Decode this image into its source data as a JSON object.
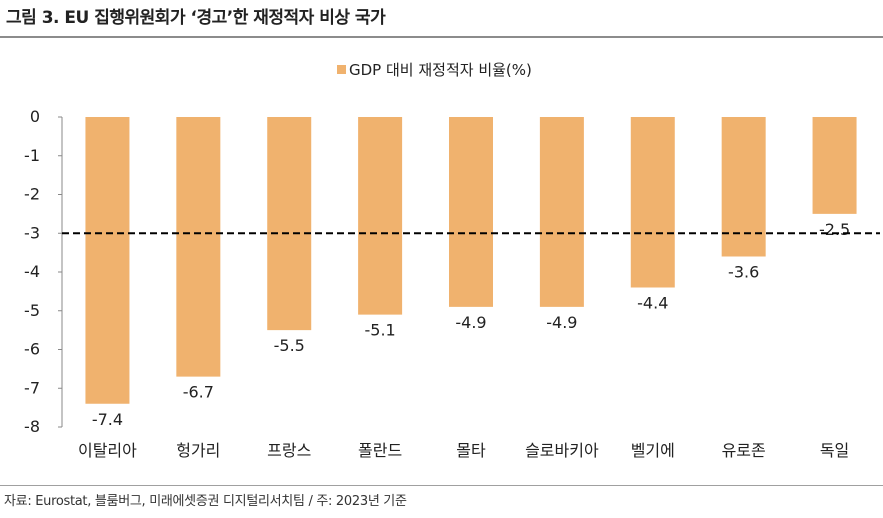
{
  "header": {
    "title": "그림 3. EU 집행위원회가 ‘경고’한 재정적자 비상 국가"
  },
  "footer": {
    "source": "자료: Eurostat, 블룸버그, 미래에셋증권 디지털리서치팀 / 주: 2023년 기준"
  },
  "chart_data": {
    "type": "bar",
    "categories": [
      "이탈리아",
      "헝가리",
      "프랑스",
      "폴란드",
      "몰타",
      "슬로바키아",
      "벨기에",
      "유로존",
      "독일"
    ],
    "series": [
      {
        "name": "GDP 대비 재정적자 비율(%)",
        "values": [
          -7.4,
          -6.7,
          -5.5,
          -5.1,
          -4.9,
          -4.9,
          -4.4,
          -3.6,
          -2.5
        ],
        "labels": [
          "-7.4",
          "-6.7",
          "-5.5",
          "-5.1",
          "-4.9",
          "-4.9",
          "-4.4",
          "-3.6",
          "-2.5"
        ],
        "color": "#f0b26e"
      }
    ],
    "ylim": [
      -8,
      0
    ],
    "yticks": [
      0,
      -1,
      -2,
      -3,
      -4,
      -5,
      -6,
      -7,
      -8
    ],
    "ytick_labels": [
      "0",
      "-1",
      "-2",
      "-3",
      "-4",
      "-5",
      "-6",
      "-7",
      "-8"
    ],
    "reference_line": {
      "value": -3,
      "style": "dashed",
      "color": "#000000"
    },
    "legend_position": "top-center",
    "grid": false
  }
}
